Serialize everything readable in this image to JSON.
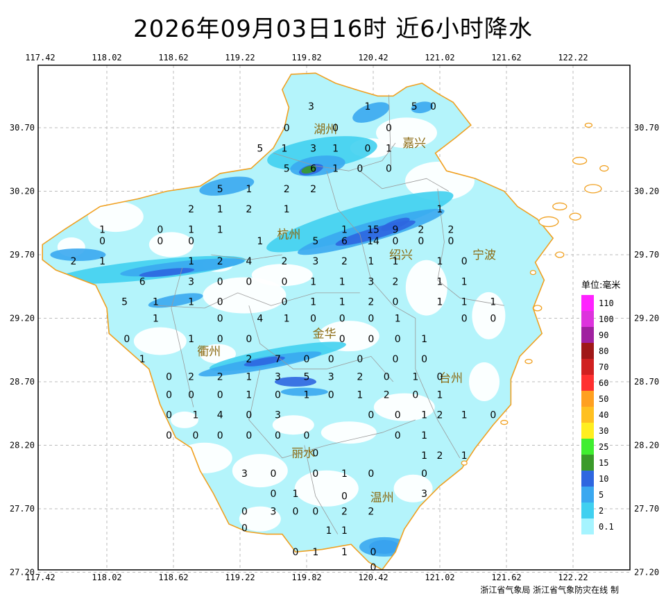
{
  "title": "2026年09月03日16时  近6小时降水",
  "footer": "浙江省气象局 浙江省气象防灾在线 制",
  "axes": {
    "lon_ticks": [
      "117.42",
      "118.02",
      "118.62",
      "119.22",
      "119.82",
      "120.42",
      "121.02",
      "121.62",
      "122.22"
    ],
    "lat_ticks": [
      "30.70",
      "30.20",
      "29.70",
      "29.20",
      "28.70",
      "28.20",
      "27.70",
      "27.20"
    ]
  },
  "cities": [
    {
      "name": "湖州",
      "lon": 119.99,
      "lat": 30.69
    },
    {
      "name": "嘉兴",
      "lon": 120.79,
      "lat": 30.58
    },
    {
      "name": "杭州",
      "lon": 119.66,
      "lat": 29.86
    },
    {
      "name": "绍兴",
      "lon": 120.67,
      "lat": 29.7
    },
    {
      "name": "宁波",
      "lon": 121.42,
      "lat": 29.7
    },
    {
      "name": "金华",
      "lon": 119.98,
      "lat": 29.08
    },
    {
      "name": "衢州",
      "lon": 118.94,
      "lat": 28.94
    },
    {
      "name": "台州",
      "lon": 121.12,
      "lat": 28.73
    },
    {
      "name": "丽水",
      "lon": 119.79,
      "lat": 28.14
    },
    {
      "name": "温州",
      "lon": 120.5,
      "lat": 27.79
    }
  ],
  "stations": [
    {
      "v": "3",
      "lon": 119.86,
      "lat": 30.87
    },
    {
      "v": "1",
      "lon": 120.37,
      "lat": 30.87
    },
    {
      "v": "5",
      "lon": 120.79,
      "lat": 30.87
    },
    {
      "v": "0",
      "lon": 120.96,
      "lat": 30.87
    },
    {
      "v": "0",
      "lon": 119.64,
      "lat": 30.7
    },
    {
      "v": "0",
      "lon": 120.08,
      "lat": 30.7
    },
    {
      "v": "0",
      "lon": 120.56,
      "lat": 30.7
    },
    {
      "v": "5",
      "lon": 119.4,
      "lat": 30.54
    },
    {
      "v": "1",
      "lon": 119.62,
      "lat": 30.54
    },
    {
      "v": "3",
      "lon": 119.88,
      "lat": 30.54
    },
    {
      "v": "1",
      "lon": 120.08,
      "lat": 30.54
    },
    {
      "v": "0",
      "lon": 120.37,
      "lat": 30.54
    },
    {
      "v": "1",
      "lon": 120.56,
      "lat": 30.54
    },
    {
      "v": "5",
      "lon": 119.64,
      "lat": 30.38
    },
    {
      "v": "6",
      "lon": 119.88,
      "lat": 30.38
    },
    {
      "v": "1",
      "lon": 120.08,
      "lat": 30.38
    },
    {
      "v": "0",
      "lon": 120.3,
      "lat": 30.38
    },
    {
      "v": "0",
      "lon": 120.56,
      "lat": 30.38
    },
    {
      "v": "5",
      "lon": 119.04,
      "lat": 30.22
    },
    {
      "v": "1",
      "lon": 119.3,
      "lat": 30.22
    },
    {
      "v": "2",
      "lon": 119.64,
      "lat": 30.22
    },
    {
      "v": "2",
      "lon": 119.88,
      "lat": 30.22
    },
    {
      "v": "2",
      "lon": 118.78,
      "lat": 30.06
    },
    {
      "v": "1",
      "lon": 119.04,
      "lat": 30.06
    },
    {
      "v": "2",
      "lon": 119.3,
      "lat": 30.06
    },
    {
      "v": "1",
      "lon": 119.64,
      "lat": 30.06
    },
    {
      "v": "1",
      "lon": 121.02,
      "lat": 30.06
    },
    {
      "v": "1",
      "lon": 117.98,
      "lat": 29.9
    },
    {
      "v": "0",
      "lon": 118.5,
      "lat": 29.9
    },
    {
      "v": "1",
      "lon": 118.78,
      "lat": 29.9
    },
    {
      "v": "1",
      "lon": 119.04,
      "lat": 29.9
    },
    {
      "v": "1",
      "lon": 120.16,
      "lat": 29.9
    },
    {
      "v": "15",
      "lon": 120.42,
      "lat": 29.9
    },
    {
      "v": "9",
      "lon": 120.62,
      "lat": 29.9
    },
    {
      "v": "2",
      "lon": 120.85,
      "lat": 29.9
    },
    {
      "v": "2",
      "lon": 121.12,
      "lat": 29.9
    },
    {
      "v": "0",
      "lon": 117.98,
      "lat": 29.81
    },
    {
      "v": "0",
      "lon": 118.5,
      "lat": 29.81
    },
    {
      "v": "0",
      "lon": 118.78,
      "lat": 29.81
    },
    {
      "v": "1",
      "lon": 119.4,
      "lat": 29.81
    },
    {
      "v": "5",
      "lon": 119.9,
      "lat": 29.81
    },
    {
      "v": "6",
      "lon": 120.16,
      "lat": 29.81
    },
    {
      "v": "14",
      "lon": 120.42,
      "lat": 29.81
    },
    {
      "v": "0",
      "lon": 120.62,
      "lat": 29.81
    },
    {
      "v": "0",
      "lon": 120.85,
      "lat": 29.81
    },
    {
      "v": "0",
      "lon": 121.12,
      "lat": 29.81
    },
    {
      "v": "2",
      "lon": 117.72,
      "lat": 29.65
    },
    {
      "v": "1",
      "lon": 117.98,
      "lat": 29.65
    },
    {
      "v": "1",
      "lon": 118.78,
      "lat": 29.65
    },
    {
      "v": "2",
      "lon": 119.04,
      "lat": 29.65
    },
    {
      "v": "4",
      "lon": 119.3,
      "lat": 29.65
    },
    {
      "v": "2",
      "lon": 119.62,
      "lat": 29.65
    },
    {
      "v": "3",
      "lon": 119.9,
      "lat": 29.65
    },
    {
      "v": "2",
      "lon": 120.16,
      "lat": 29.65
    },
    {
      "v": "1",
      "lon": 120.4,
      "lat": 29.65
    },
    {
      "v": "1",
      "lon": 120.62,
      "lat": 29.65
    },
    {
      "v": "1",
      "lon": 121.02,
      "lat": 29.65
    },
    {
      "v": "0",
      "lon": 121.24,
      "lat": 29.65
    },
    {
      "v": "6",
      "lon": 118.34,
      "lat": 29.49
    },
    {
      "v": "3",
      "lon": 118.78,
      "lat": 29.49
    },
    {
      "v": "0",
      "lon": 119.04,
      "lat": 29.49
    },
    {
      "v": "0",
      "lon": 119.3,
      "lat": 29.49
    },
    {
      "v": "0",
      "lon": 119.62,
      "lat": 29.49
    },
    {
      "v": "1",
      "lon": 119.88,
      "lat": 29.49
    },
    {
      "v": "1",
      "lon": 120.14,
      "lat": 29.49
    },
    {
      "v": "3",
      "lon": 120.4,
      "lat": 29.49
    },
    {
      "v": "2",
      "lon": 120.62,
      "lat": 29.49
    },
    {
      "v": "1",
      "lon": 121.02,
      "lat": 29.49
    },
    {
      "v": "1",
      "lon": 121.24,
      "lat": 29.49
    },
    {
      "v": "5",
      "lon": 118.18,
      "lat": 29.33
    },
    {
      "v": "1",
      "lon": 118.46,
      "lat": 29.33
    },
    {
      "v": "1",
      "lon": 118.78,
      "lat": 29.33
    },
    {
      "v": "0",
      "lon": 119.04,
      "lat": 29.33
    },
    {
      "v": "0",
      "lon": 119.62,
      "lat": 29.33
    },
    {
      "v": "1",
      "lon": 119.88,
      "lat": 29.33
    },
    {
      "v": "1",
      "lon": 120.14,
      "lat": 29.33
    },
    {
      "v": "2",
      "lon": 120.4,
      "lat": 29.33
    },
    {
      "v": "0",
      "lon": 120.62,
      "lat": 29.33
    },
    {
      "v": "1",
      "lon": 121.02,
      "lat": 29.33
    },
    {
      "v": "1",
      "lon": 121.24,
      "lat": 29.33
    },
    {
      "v": "1",
      "lon": 121.5,
      "lat": 29.33
    },
    {
      "v": "1",
      "lon": 118.46,
      "lat": 29.2
    },
    {
      "v": "0",
      "lon": 119.04,
      "lat": 29.2
    },
    {
      "v": "4",
      "lon": 119.4,
      "lat": 29.2
    },
    {
      "v": "1",
      "lon": 119.64,
      "lat": 29.2
    },
    {
      "v": "0",
      "lon": 119.88,
      "lat": 29.2
    },
    {
      "v": "0",
      "lon": 120.14,
      "lat": 29.2
    },
    {
      "v": "0",
      "lon": 120.4,
      "lat": 29.2
    },
    {
      "v": "1",
      "lon": 120.64,
      "lat": 29.2
    },
    {
      "v": "0",
      "lon": 121.24,
      "lat": 29.2
    },
    {
      "v": "0",
      "lon": 121.5,
      "lat": 29.2
    },
    {
      "v": "0",
      "lon": 118.2,
      "lat": 29.04
    },
    {
      "v": "1",
      "lon": 118.78,
      "lat": 29.04
    },
    {
      "v": "0",
      "lon": 119.04,
      "lat": 29.04
    },
    {
      "v": "0",
      "lon": 119.3,
      "lat": 29.04
    },
    {
      "v": "0",
      "lon": 120.14,
      "lat": 29.04
    },
    {
      "v": "0",
      "lon": 120.4,
      "lat": 29.04
    },
    {
      "v": "0",
      "lon": 120.64,
      "lat": 29.04
    },
    {
      "v": "1",
      "lon": 120.88,
      "lat": 29.04
    },
    {
      "v": "1",
      "lon": 118.34,
      "lat": 28.88
    },
    {
      "v": "2",
      "lon": 119.3,
      "lat": 28.88
    },
    {
      "v": "7",
      "lon": 119.56,
      "lat": 28.88
    },
    {
      "v": "0",
      "lon": 119.82,
      "lat": 28.88
    },
    {
      "v": "0",
      "lon": 120.04,
      "lat": 28.88
    },
    {
      "v": "0",
      "lon": 120.3,
      "lat": 28.88
    },
    {
      "v": "0",
      "lon": 120.62,
      "lat": 28.88
    },
    {
      "v": "0",
      "lon": 120.88,
      "lat": 28.88
    },
    {
      "v": "0",
      "lon": 118.58,
      "lat": 28.74
    },
    {
      "v": "2",
      "lon": 118.78,
      "lat": 28.74
    },
    {
      "v": "2",
      "lon": 119.04,
      "lat": 28.74
    },
    {
      "v": "1",
      "lon": 119.3,
      "lat": 28.74
    },
    {
      "v": "3",
      "lon": 119.56,
      "lat": 28.74
    },
    {
      "v": "5",
      "lon": 119.82,
      "lat": 28.74
    },
    {
      "v": "3",
      "lon": 120.04,
      "lat": 28.74
    },
    {
      "v": "2",
      "lon": 120.3,
      "lat": 28.74
    },
    {
      "v": "0",
      "lon": 120.54,
      "lat": 28.74
    },
    {
      "v": "1",
      "lon": 120.8,
      "lat": 28.74
    },
    {
      "v": "0",
      "lon": 121.02,
      "lat": 28.74
    },
    {
      "v": "0",
      "lon": 118.58,
      "lat": 28.6
    },
    {
      "v": "0",
      "lon": 118.78,
      "lat": 28.6
    },
    {
      "v": "0",
      "lon": 119.04,
      "lat": 28.6
    },
    {
      "v": "1",
      "lon": 119.3,
      "lat": 28.6
    },
    {
      "v": "0",
      "lon": 119.56,
      "lat": 28.6
    },
    {
      "v": "1",
      "lon": 119.82,
      "lat": 28.6
    },
    {
      "v": "0",
      "lon": 120.04,
      "lat": 28.6
    },
    {
      "v": "1",
      "lon": 120.3,
      "lat": 28.6
    },
    {
      "v": "2",
      "lon": 120.54,
      "lat": 28.6
    },
    {
      "v": "0",
      "lon": 120.8,
      "lat": 28.6
    },
    {
      "v": "1",
      "lon": 121.02,
      "lat": 28.6
    },
    {
      "v": "0",
      "lon": 118.58,
      "lat": 28.44
    },
    {
      "v": "1",
      "lon": 118.82,
      "lat": 28.44
    },
    {
      "v": "4",
      "lon": 119.04,
      "lat": 28.44
    },
    {
      "v": "0",
      "lon": 119.3,
      "lat": 28.44
    },
    {
      "v": "3",
      "lon": 119.56,
      "lat": 28.44
    },
    {
      "v": "0",
      "lon": 120.4,
      "lat": 28.44
    },
    {
      "v": "0",
      "lon": 120.64,
      "lat": 28.44
    },
    {
      "v": "1",
      "lon": 120.88,
      "lat": 28.44
    },
    {
      "v": "2",
      "lon": 121.02,
      "lat": 28.44
    },
    {
      "v": "1",
      "lon": 121.24,
      "lat": 28.44
    },
    {
      "v": "0",
      "lon": 121.5,
      "lat": 28.44
    },
    {
      "v": "0",
      "lon": 118.58,
      "lat": 28.28
    },
    {
      "v": "0",
      "lon": 118.82,
      "lat": 28.28
    },
    {
      "v": "0",
      "lon": 119.04,
      "lat": 28.28
    },
    {
      "v": "0",
      "lon": 119.3,
      "lat": 28.28
    },
    {
      "v": "0",
      "lon": 119.56,
      "lat": 28.28
    },
    {
      "v": "0",
      "lon": 119.82,
      "lat": 28.28
    },
    {
      "v": "0",
      "lon": 120.64,
      "lat": 28.28
    },
    {
      "v": "1",
      "lon": 120.88,
      "lat": 28.28
    },
    {
      "v": "1",
      "lon": 120.88,
      "lat": 28.12
    },
    {
      "v": "2",
      "lon": 121.02,
      "lat": 28.12
    },
    {
      "v": "1",
      "lon": 121.24,
      "lat": 28.12
    },
    {
      "v": "0",
      "lon": 119.9,
      "lat": 28.14
    },
    {
      "v": "3",
      "lon": 119.26,
      "lat": 27.98
    },
    {
      "v": "0",
      "lon": 119.52,
      "lat": 27.98
    },
    {
      "v": "0",
      "lon": 119.9,
      "lat": 27.98
    },
    {
      "v": "1",
      "lon": 120.16,
      "lat": 27.98
    },
    {
      "v": "0",
      "lon": 120.4,
      "lat": 27.98
    },
    {
      "v": "0",
      "lon": 120.88,
      "lat": 27.98
    },
    {
      "v": "0",
      "lon": 119.52,
      "lat": 27.82
    },
    {
      "v": "1",
      "lon": 119.72,
      "lat": 27.82
    },
    {
      "v": "0",
      "lon": 120.16,
      "lat": 27.8
    },
    {
      "v": "3",
      "lon": 120.88,
      "lat": 27.82
    },
    {
      "v": "0",
      "lon": 119.26,
      "lat": 27.68
    },
    {
      "v": "3",
      "lon": 119.52,
      "lat": 27.68
    },
    {
      "v": "0",
      "lon": 119.72,
      "lat": 27.68
    },
    {
      "v": "0",
      "lon": 119.9,
      "lat": 27.68
    },
    {
      "v": "2",
      "lon": 120.16,
      "lat": 27.68
    },
    {
      "v": "2",
      "lon": 120.4,
      "lat": 27.68
    },
    {
      "v": "0",
      "lon": 119.26,
      "lat": 27.55
    },
    {
      "v": "1",
      "lon": 120.02,
      "lat": 27.53
    },
    {
      "v": "1",
      "lon": 120.16,
      "lat": 27.53
    },
    {
      "v": "0",
      "lon": 119.72,
      "lat": 27.36
    },
    {
      "v": "1",
      "lon": 119.9,
      "lat": 27.36
    },
    {
      "v": "1",
      "lon": 120.16,
      "lat": 27.36
    },
    {
      "v": "0",
      "lon": 120.42,
      "lat": 27.36
    },
    {
      "v": "0",
      "lon": 120.42,
      "lat": 27.24
    }
  ],
  "legend": {
    "title": "单位:毫米",
    "items": [
      {
        "label": "110",
        "color": "#ff22ff"
      },
      {
        "label": "100",
        "color": "#dd33dd"
      },
      {
        "label": "90",
        "color": "#a020a0"
      },
      {
        "label": "80",
        "color": "#a01818"
      },
      {
        "label": "70",
        "color": "#d02020"
      },
      {
        "label": "60",
        "color": "#ff3030"
      },
      {
        "label": "50",
        "color": "#ffa020"
      },
      {
        "label": "40",
        "color": "#ffc020"
      },
      {
        "label": "30",
        "color": "#ffee20"
      },
      {
        "label": "25",
        "color": "#40ee30"
      },
      {
        "label": "15",
        "color": "#3a9a2a"
      },
      {
        "label": "10",
        "color": "#2e66e0"
      },
      {
        "label": "5",
        "color": "#3aa8f0"
      },
      {
        "label": "2",
        "color": "#40d0f0"
      },
      {
        "label": "0.1",
        "color": "#a6f4ff"
      }
    ]
  }
}
